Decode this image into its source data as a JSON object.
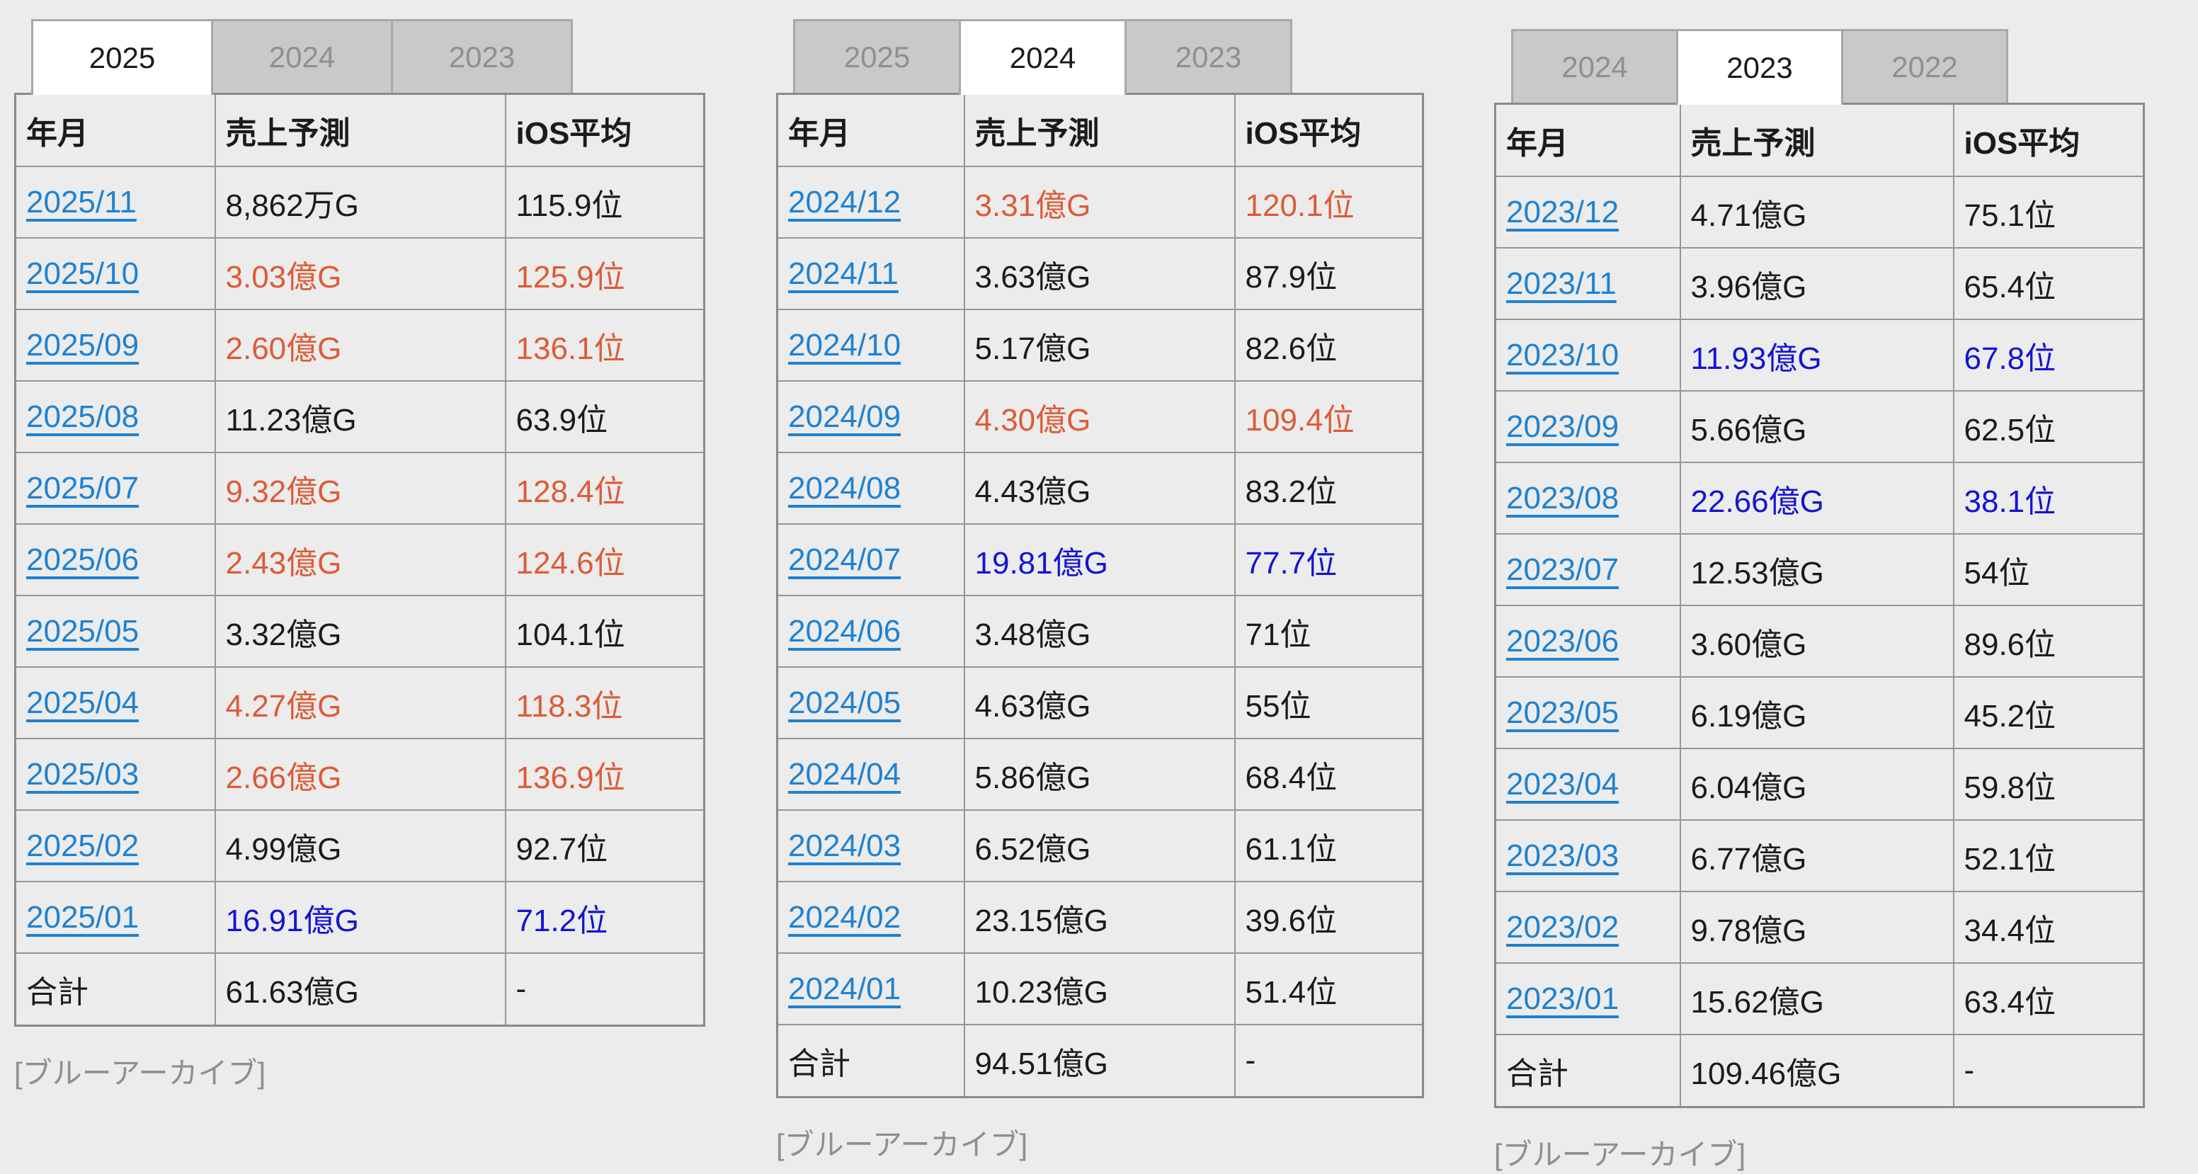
{
  "page": {
    "background": "#ececec"
  },
  "colors": {
    "link_blue": "#1e82d2",
    "highlight_blue": "#1414d2",
    "highlight_orange": "#dd5b36",
    "text": "#1b1b1b",
    "muted_gray": "#8f8f8f",
    "tab_inactive_bg": "#c9c9c9",
    "tab_active_bg": "#ffffff",
    "table_border": "#969696"
  },
  "tables": [
    {
      "tabs": [
        {
          "label": "2025",
          "active": true
        },
        {
          "label": "2024",
          "active": false
        },
        {
          "label": "2023",
          "active": false
        }
      ],
      "columns": [
        "年月",
        "売上予測",
        "iOS平均"
      ],
      "rows": [
        {
          "month": "2025/11",
          "sales": "8,862万G",
          "ios": "115.9位",
          "tone": "none"
        },
        {
          "month": "2025/10",
          "sales": "3.03億G",
          "ios": "125.9位",
          "tone": "orange"
        },
        {
          "month": "2025/09",
          "sales": "2.60億G",
          "ios": "136.1位",
          "tone": "orange"
        },
        {
          "month": "2025/08",
          "sales": "11.23億G",
          "ios": "63.9位",
          "tone": "none"
        },
        {
          "month": "2025/07",
          "sales": "9.32億G",
          "ios": "128.4位",
          "tone": "orange"
        },
        {
          "month": "2025/06",
          "sales": "2.43億G",
          "ios": "124.6位",
          "tone": "orange"
        },
        {
          "month": "2025/05",
          "sales": "3.32億G",
          "ios": "104.1位",
          "tone": "none"
        },
        {
          "month": "2025/04",
          "sales": "4.27億G",
          "ios": "118.3位",
          "tone": "orange"
        },
        {
          "month": "2025/03",
          "sales": "2.66億G",
          "ios": "136.9位",
          "tone": "orange"
        },
        {
          "month": "2025/02",
          "sales": "4.99億G",
          "ios": "92.7位",
          "tone": "none"
        },
        {
          "month": "2025/01",
          "sales": "16.91億G",
          "ios": "71.2位",
          "tone": "blue"
        }
      ],
      "total": {
        "label": "合計",
        "sales": "61.63億G",
        "ios": "-"
      },
      "caption": "[ブルーアーカイブ]"
    },
    {
      "tabs": [
        {
          "label": "2025",
          "active": false
        },
        {
          "label": "2024",
          "active": true
        },
        {
          "label": "2023",
          "active": false
        }
      ],
      "columns": [
        "年月",
        "売上予測",
        "iOS平均"
      ],
      "rows": [
        {
          "month": "2024/12",
          "sales": "3.31億G",
          "ios": "120.1位",
          "tone": "orange"
        },
        {
          "month": "2024/11",
          "sales": "3.63億G",
          "ios": "87.9位",
          "tone": "none"
        },
        {
          "month": "2024/10",
          "sales": "5.17億G",
          "ios": "82.6位",
          "tone": "none"
        },
        {
          "month": "2024/09",
          "sales": "4.30億G",
          "ios": "109.4位",
          "tone": "orange"
        },
        {
          "month": "2024/08",
          "sales": "4.43億G",
          "ios": "83.2位",
          "tone": "none"
        },
        {
          "month": "2024/07",
          "sales": "19.81億G",
          "ios": "77.7位",
          "tone": "blue"
        },
        {
          "month": "2024/06",
          "sales": "3.48億G",
          "ios": "71位",
          "tone": "none"
        },
        {
          "month": "2024/05",
          "sales": "4.63億G",
          "ios": "55位",
          "tone": "none"
        },
        {
          "month": "2024/04",
          "sales": "5.86億G",
          "ios": "68.4位",
          "tone": "none"
        },
        {
          "month": "2024/03",
          "sales": "6.52億G",
          "ios": "61.1位",
          "tone": "none"
        },
        {
          "month": "2024/02",
          "sales": "23.15億G",
          "ios": "39.6位",
          "tone": "none"
        },
        {
          "month": "2024/01",
          "sales": "10.23億G",
          "ios": "51.4位",
          "tone": "none"
        }
      ],
      "total": {
        "label": "合計",
        "sales": "94.51億G",
        "ios": "-"
      },
      "caption": "[ブルーアーカイブ]"
    },
    {
      "tabs": [
        {
          "label": "2024",
          "active": false
        },
        {
          "label": "2023",
          "active": true
        },
        {
          "label": "2022",
          "active": false
        }
      ],
      "columns": [
        "年月",
        "売上予測",
        "iOS平均"
      ],
      "rows": [
        {
          "month": "2023/12",
          "sales": "4.71億G",
          "ios": "75.1位",
          "tone": "none"
        },
        {
          "month": "2023/11",
          "sales": "3.96億G",
          "ios": "65.4位",
          "tone": "none"
        },
        {
          "month": "2023/10",
          "sales": "11.93億G",
          "ios": "67.8位",
          "tone": "blue"
        },
        {
          "month": "2023/09",
          "sales": "5.66億G",
          "ios": "62.5位",
          "tone": "none"
        },
        {
          "month": "2023/08",
          "sales": "22.66億G",
          "ios": "38.1位",
          "tone": "blue"
        },
        {
          "month": "2023/07",
          "sales": "12.53億G",
          "ios": "54位",
          "tone": "none"
        },
        {
          "month": "2023/06",
          "sales": "3.60億G",
          "ios": "89.6位",
          "tone": "none"
        },
        {
          "month": "2023/05",
          "sales": "6.19億G",
          "ios": "45.2位",
          "tone": "none"
        },
        {
          "month": "2023/04",
          "sales": "6.04億G",
          "ios": "59.8位",
          "tone": "none"
        },
        {
          "month": "2023/03",
          "sales": "6.77億G",
          "ios": "52.1位",
          "tone": "none"
        },
        {
          "month": "2023/02",
          "sales": "9.78億G",
          "ios": "34.4位",
          "tone": "none"
        },
        {
          "month": "2023/01",
          "sales": "15.62億G",
          "ios": "63.4位",
          "tone": "none"
        }
      ],
      "total": {
        "label": "合計",
        "sales": "109.46億G",
        "ios": "-"
      },
      "caption": "[ブルーアーカイブ]"
    }
  ]
}
